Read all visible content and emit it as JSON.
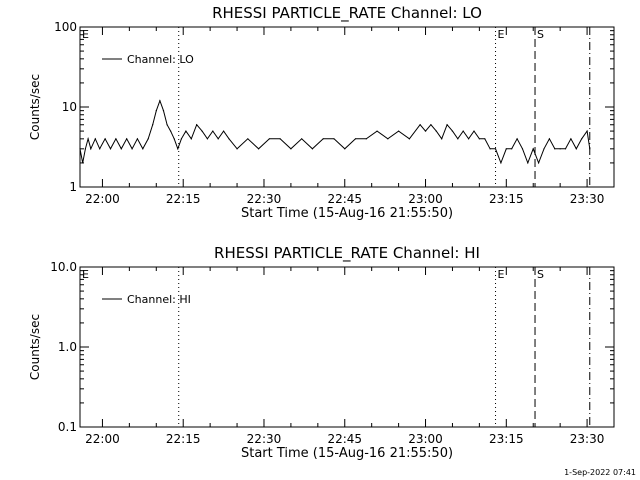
{
  "footer_stamp": "1-Sep-2022 07:41",
  "chart_data": [
    {
      "type": "line",
      "title": "RHESSI PARTICLE_RATE Channel: LO",
      "xlabel": "Start Time (15-Aug-16 21:55:50)",
      "ylabel": "Counts/sec",
      "yscale": "log",
      "ylim": [
        1,
        100
      ],
      "xlim": [
        "21:55:50",
        "23:35:00"
      ],
      "x_ticks": [
        "22:00",
        "22:15",
        "22:30",
        "22:45",
        "23:00",
        "23:15",
        "23:30"
      ],
      "y_ticks": [
        "1",
        "10",
        "100"
      ],
      "grid": false,
      "legend": {
        "position": "top-left",
        "entries": [
          "Channel: LO"
        ]
      },
      "markers": [
        {
          "label": "E",
          "time": "21:55:50",
          "style": "solid"
        },
        {
          "label": "",
          "time": "22:14:10",
          "style": "dotted"
        },
        {
          "label": "E",
          "time": "23:13:00",
          "style": "dotted"
        },
        {
          "label": "S",
          "time": "23:20:20",
          "style": "dashed"
        },
        {
          "label": "",
          "time": "23:30:30",
          "style": "dashdot"
        }
      ],
      "series": [
        {
          "name": "Channel: LO",
          "x": [
            "21:55:50",
            "21:56:20",
            "21:56:50",
            "21:57:20",
            "21:57:50",
            "21:58:40",
            "21:59:30",
            "22:00:30",
            "22:01:30",
            "22:02:30",
            "22:03:30",
            "22:04:30",
            "22:05:30",
            "22:06:30",
            "22:07:30",
            "22:08:30",
            "22:09:20",
            "22:10:00",
            "22:10:40",
            "22:11:20",
            "22:12:00",
            "22:12:40",
            "22:13:20",
            "22:14:00",
            "22:14:40",
            "22:15:30",
            "22:16:30",
            "22:17:30",
            "22:18:30",
            "22:19:30",
            "22:20:30",
            "22:21:30",
            "22:22:30",
            "22:23:30",
            "22:25:00",
            "22:27:00",
            "22:29:00",
            "22:31:00",
            "22:33:00",
            "22:35:00",
            "22:37:00",
            "22:39:00",
            "22:41:00",
            "22:43:00",
            "22:45:00",
            "22:47:00",
            "22:49:00",
            "22:51:00",
            "22:53:00",
            "22:55:00",
            "22:57:00",
            "22:59:00",
            "23:00:00",
            "23:01:00",
            "23:02:00",
            "23:03:00",
            "23:04:00",
            "23:05:00",
            "23:06:00",
            "23:07:00",
            "23:08:00",
            "23:09:00",
            "23:10:00",
            "23:11:00",
            "23:12:00",
            "23:13:00",
            "23:14:00",
            "23:15:00",
            "23:16:00",
            "23:17:00",
            "23:18:00",
            "23:19:00",
            "23:20:00",
            "23:21:00",
            "23:22:00",
            "23:23:00",
            "23:24:00",
            "23:25:00",
            "23:26:00",
            "23:27:00",
            "23:28:00",
            "23:29:00",
            "23:30:00",
            "23:30:30"
          ],
          "values": [
            3,
            2,
            3,
            4,
            3,
            4,
            3,
            4,
            3,
            4,
            3,
            4,
            3,
            4,
            3,
            4,
            6,
            9,
            12,
            9,
            6,
            5,
            4,
            3,
            4,
            5,
            4,
            6,
            5,
            4,
            5,
            4,
            5,
            4,
            3,
            4,
            3,
            4,
            4,
            3,
            4,
            3,
            4,
            4,
            3,
            4,
            4,
            5,
            4,
            5,
            4,
            6,
            5,
            6,
            5,
            4,
            6,
            5,
            4,
            5,
            4,
            5,
            4,
            4,
            3,
            3,
            2,
            3,
            3,
            4,
            3,
            2,
            3,
            2,
            3,
            4,
            3,
            3,
            3,
            4,
            3,
            4,
            5,
            3
          ]
        }
      ]
    },
    {
      "type": "line",
      "title": "RHESSI PARTICLE_RATE Channel: HI",
      "xlabel": "Start Time (15-Aug-16 21:55:50)",
      "ylabel": "Counts/sec",
      "yscale": "log",
      "ylim": [
        0.1,
        10
      ],
      "xlim": [
        "21:55:50",
        "23:35:00"
      ],
      "x_ticks": [
        "22:00",
        "22:15",
        "22:30",
        "22:45",
        "23:00",
        "23:15",
        "23:30"
      ],
      "y_ticks": [
        "0.1",
        "1.0",
        "10.0"
      ],
      "grid": false,
      "legend": {
        "position": "top-left",
        "entries": [
          "Channel: HI"
        ]
      },
      "markers": [
        {
          "label": "E",
          "time": "21:55:50",
          "style": "solid"
        },
        {
          "label": "",
          "time": "22:14:10",
          "style": "dotted"
        },
        {
          "label": "E",
          "time": "23:13:00",
          "style": "dotted"
        },
        {
          "label": "S",
          "time": "23:20:20",
          "style": "dashed"
        },
        {
          "label": "",
          "time": "23:30:30",
          "style": "dashdot"
        }
      ],
      "series": [
        {
          "name": "Channel: HI",
          "x": [],
          "values": []
        }
      ]
    }
  ]
}
